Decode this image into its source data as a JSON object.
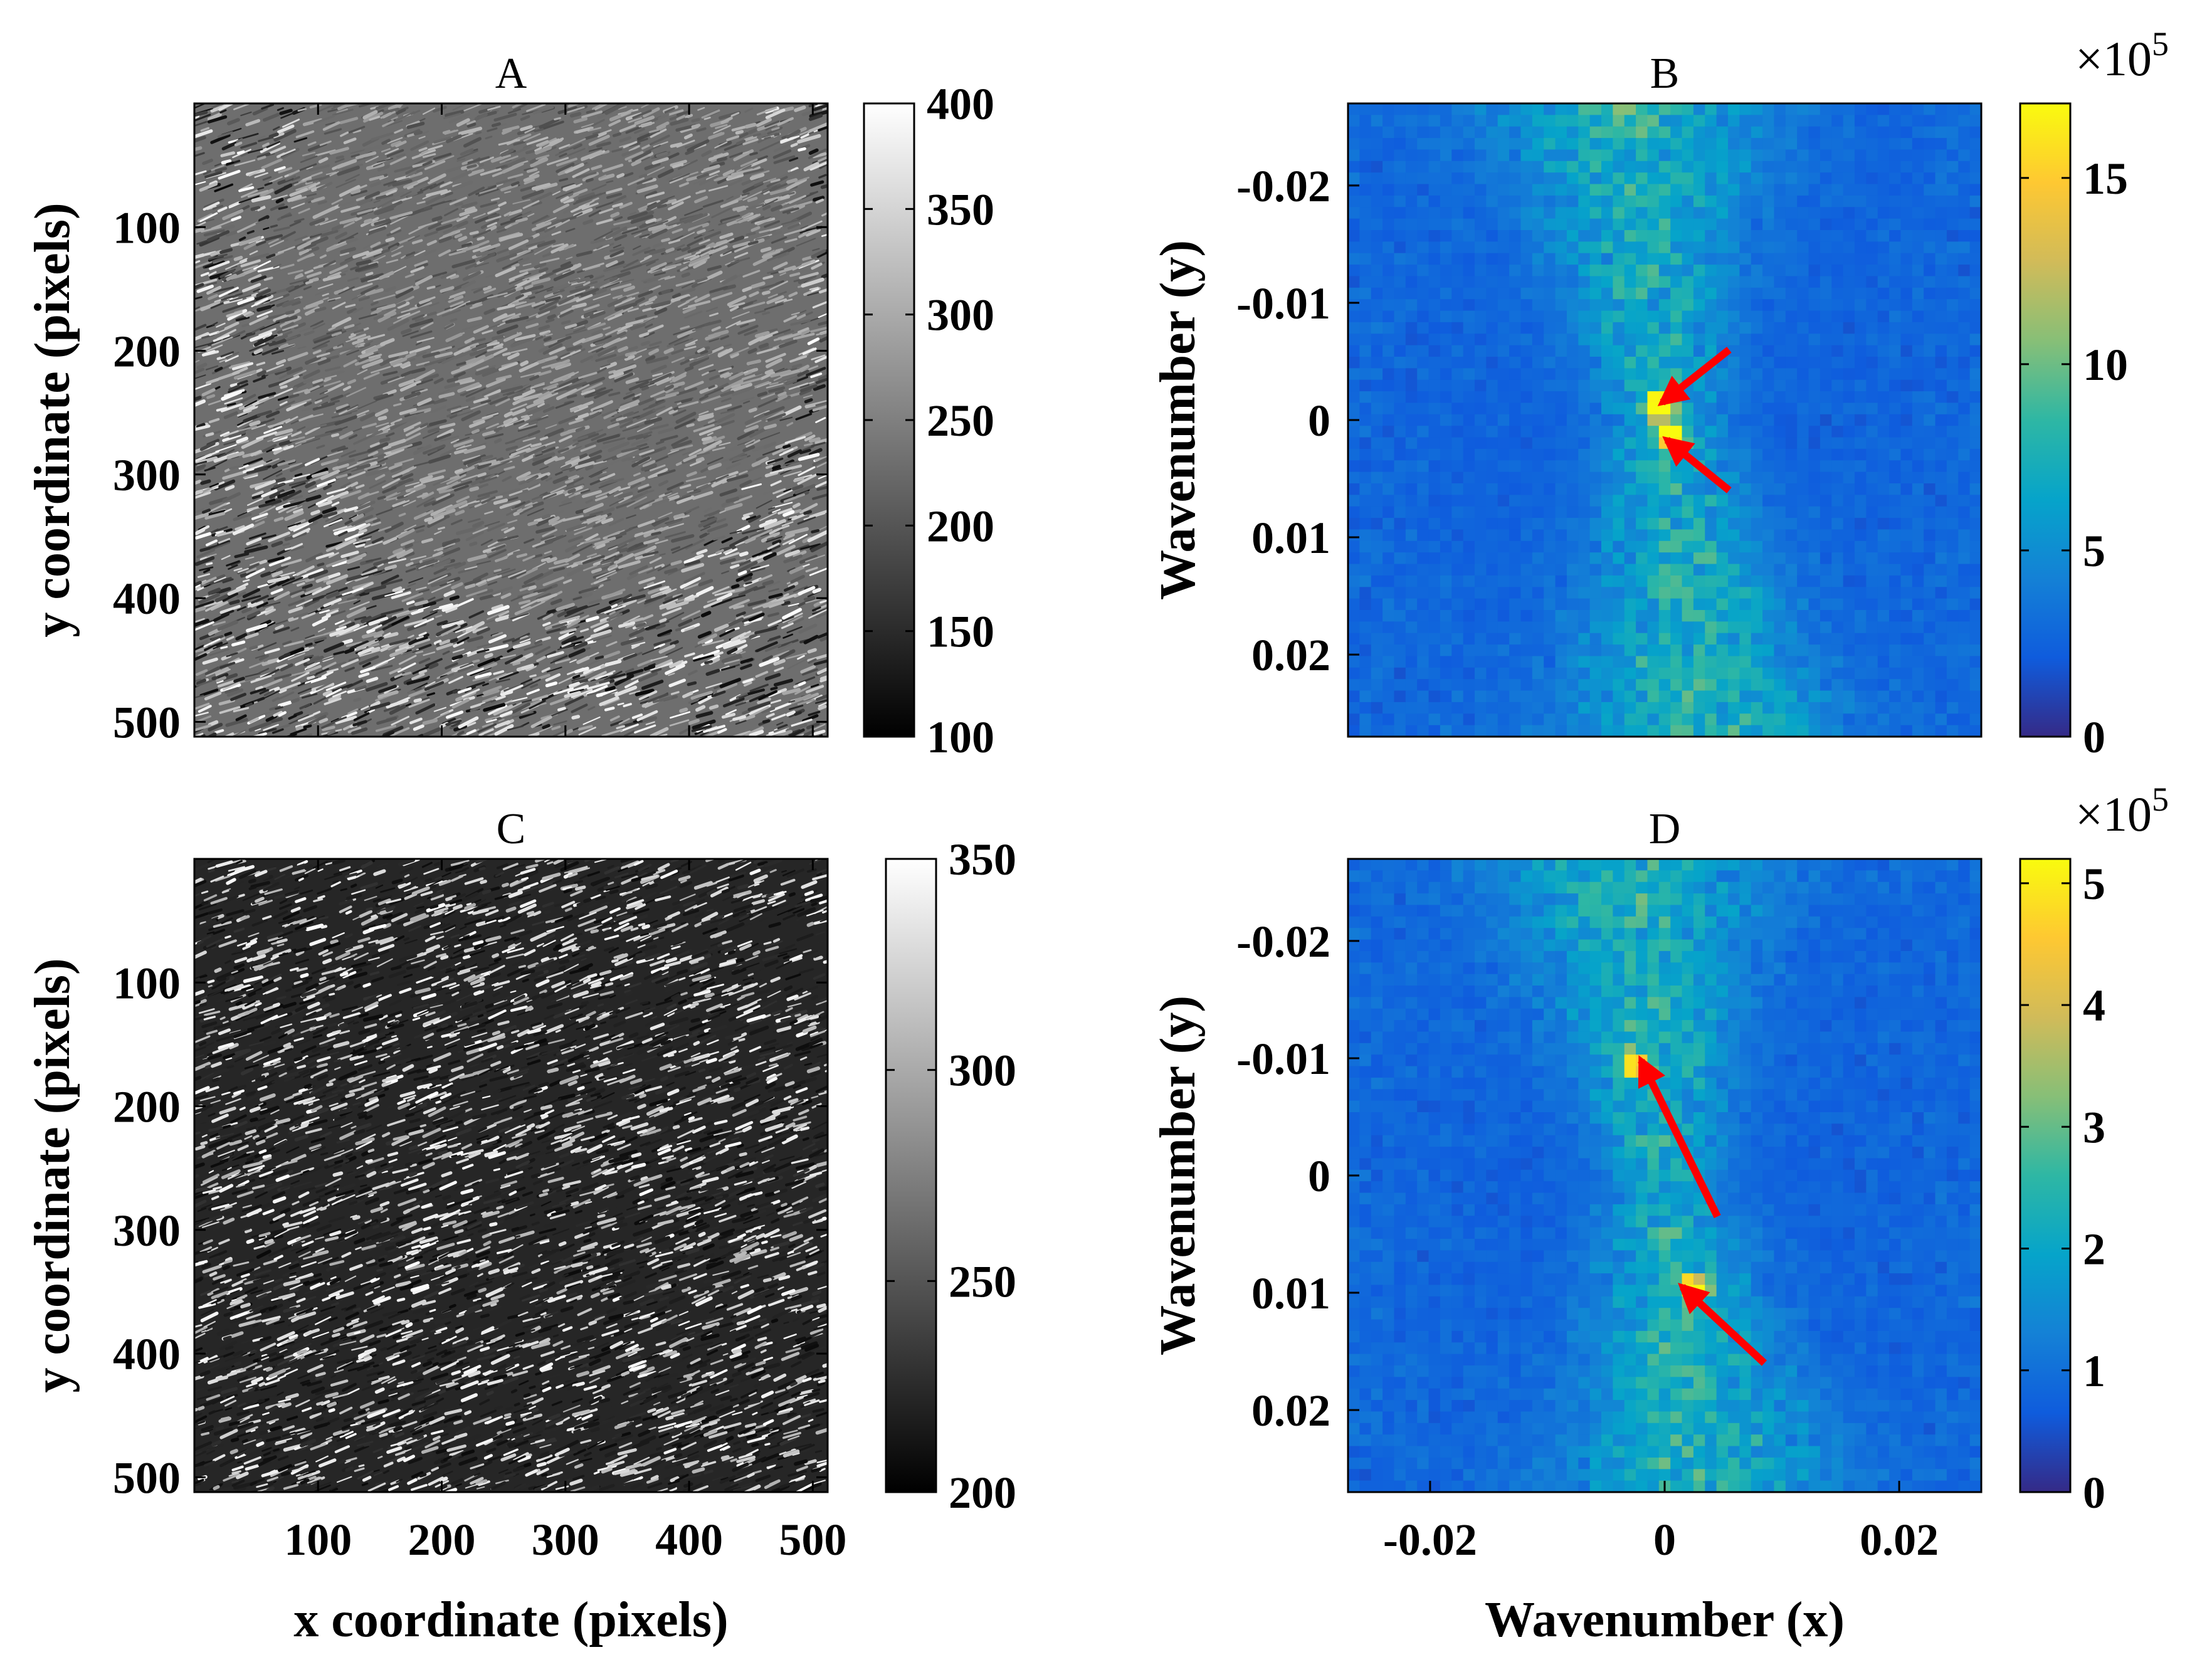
{
  "chart_data": [
    {
      "type": "heatmap",
      "panel": "A",
      "title": "A",
      "xlabel": "",
      "ylabel": "y coordinate (pixels)",
      "xlim": [
        0,
        512
      ],
      "ylim": [
        0,
        512
      ],
      "xticks": [
        100,
        200,
        300,
        400,
        500
      ],
      "x_tick_labels_shown": false,
      "yticks": [
        100,
        200,
        300,
        400,
        500
      ],
      "ytick_labels": [
        "100",
        "200",
        "300",
        "400",
        "500"
      ],
      "y_direction": "reversed",
      "colormap": "gray",
      "colorbar": {
        "min": 100,
        "max": 400,
        "ticks": [
          "100",
          "150",
          "200",
          "250",
          "300",
          "350",
          "400"
        ]
      },
      "content": "grayscale image of wave texture; smoother mid-gray region in upper center, darker high-contrast texture along bottom and lower corners"
    },
    {
      "type": "heatmap",
      "panel": "B",
      "title": "B",
      "xlabel": "",
      "ylabel": "Wavenumber (y)",
      "xlim": [
        -0.027,
        0.027
      ],
      "ylim": [
        -0.027,
        0.027
      ],
      "y_direction": "reversed",
      "yticks": [
        -0.02,
        -0.01,
        0,
        0.01,
        0.02
      ],
      "ytick_labels": [
        "-0.02",
        "-0.01",
        "0",
        "0.01",
        "0.02"
      ],
      "x_tick_labels_shown": false,
      "colormap": "parula",
      "colorbar": {
        "min": 0,
        "max": 17,
        "ticks": [
          "0",
          "5",
          "10",
          "15"
        ],
        "multiplier": "×10",
        "exponent": "5"
      },
      "peaks": [
        {
          "kx": -0.0005,
          "ky": -0.0013,
          "value": 16
        },
        {
          "kx": 0.0005,
          "ky": 0.0013,
          "value": 16
        }
      ],
      "arrows": [
        {
          "tail": [
            0.0055,
            -0.006
          ],
          "head": [
            -0.0002,
            -0.0015
          ]
        },
        {
          "tail": [
            0.0055,
            0.006
          ],
          "head": [
            0.0002,
            0.0017
          ]
        }
      ],
      "content": "2D wavenumber spectrum with elevated energy along a narrow near-vertical band through the origin"
    },
    {
      "type": "heatmap",
      "panel": "C",
      "title": "C",
      "xlabel": "x coordinate (pixels)",
      "ylabel": "y coordinate (pixels)",
      "xlim": [
        0,
        512
      ],
      "ylim": [
        0,
        512
      ],
      "xticks": [
        100,
        200,
        300,
        400,
        500
      ],
      "xtick_labels": [
        "100",
        "200",
        "300",
        "400",
        "500"
      ],
      "yticks": [
        100,
        200,
        300,
        400,
        500
      ],
      "ytick_labels": [
        "100",
        "200",
        "300",
        "400",
        "500"
      ],
      "y_direction": "reversed",
      "colormap": "gray",
      "colorbar": {
        "min": 200,
        "max": 350,
        "ticks": [
          "200",
          "250",
          "300",
          "350"
        ]
      },
      "content": "dark grayscale image with bright speckled wave crests across the field"
    },
    {
      "type": "heatmap",
      "panel": "D",
      "title": "D",
      "xlabel": "Wavenumber (x)",
      "ylabel": "Wavenumber (y)",
      "xlim": [
        -0.027,
        0.027
      ],
      "ylim": [
        -0.027,
        0.027
      ],
      "y_direction": "reversed",
      "xticks": [
        -0.02,
        0,
        0.02
      ],
      "xtick_labels": [
        "-0.02",
        "0",
        "0.02"
      ],
      "yticks": [
        -0.02,
        -0.01,
        0,
        0.01,
        0.02
      ],
      "ytick_labels": [
        "-0.02",
        "-0.01",
        "0",
        "0.01",
        "0.02"
      ],
      "colormap": "parula",
      "colorbar": {
        "min": 0,
        "max": 5.2,
        "ticks": [
          "0",
          "1",
          "2",
          "3",
          "4",
          "5"
        ],
        "multiplier": "×10",
        "exponent": "5"
      },
      "peaks": [
        {
          "kx": -0.0025,
          "ky": -0.0095,
          "value": 4.5
        },
        {
          "kx": 0.0025,
          "ky": 0.0095,
          "value": 4.5
        }
      ],
      "arrows": [
        {
          "tail": [
            0.0045,
            0.0035
          ],
          "head": [
            -0.002,
            -0.0098
          ]
        },
        {
          "tail": [
            0.0085,
            0.016
          ],
          "head": [
            0.0015,
            0.0095
          ]
        }
      ],
      "content": "2D wavenumber spectrum with a near-vertical band and two symmetric peaks near ky = ±0.01"
    }
  ]
}
